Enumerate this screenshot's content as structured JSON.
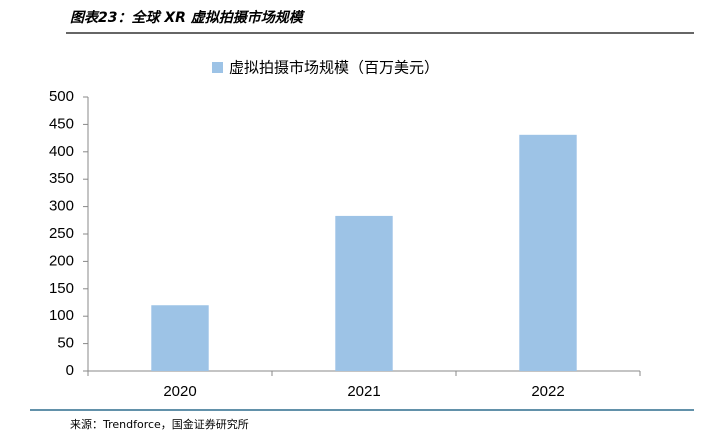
{
  "chart_data": {
    "type": "bar",
    "title": "图表23：全球 XR 虚拟拍摄市场规模",
    "categories": [
      "2020",
      "2021",
      "2022"
    ],
    "series": [
      {
        "name": "虚拟拍摄市场规模（百万美元）",
        "color": "#9dc3e6",
        "values": [
          120,
          283,
          431
        ]
      }
    ],
    "ylim": [
      0,
      500
    ],
    "yticks": [
      0,
      50,
      100,
      150,
      200,
      250,
      300,
      350,
      400,
      450,
      500
    ],
    "grid": false,
    "source": "来源：Trendforce，国金证券研究所"
  }
}
